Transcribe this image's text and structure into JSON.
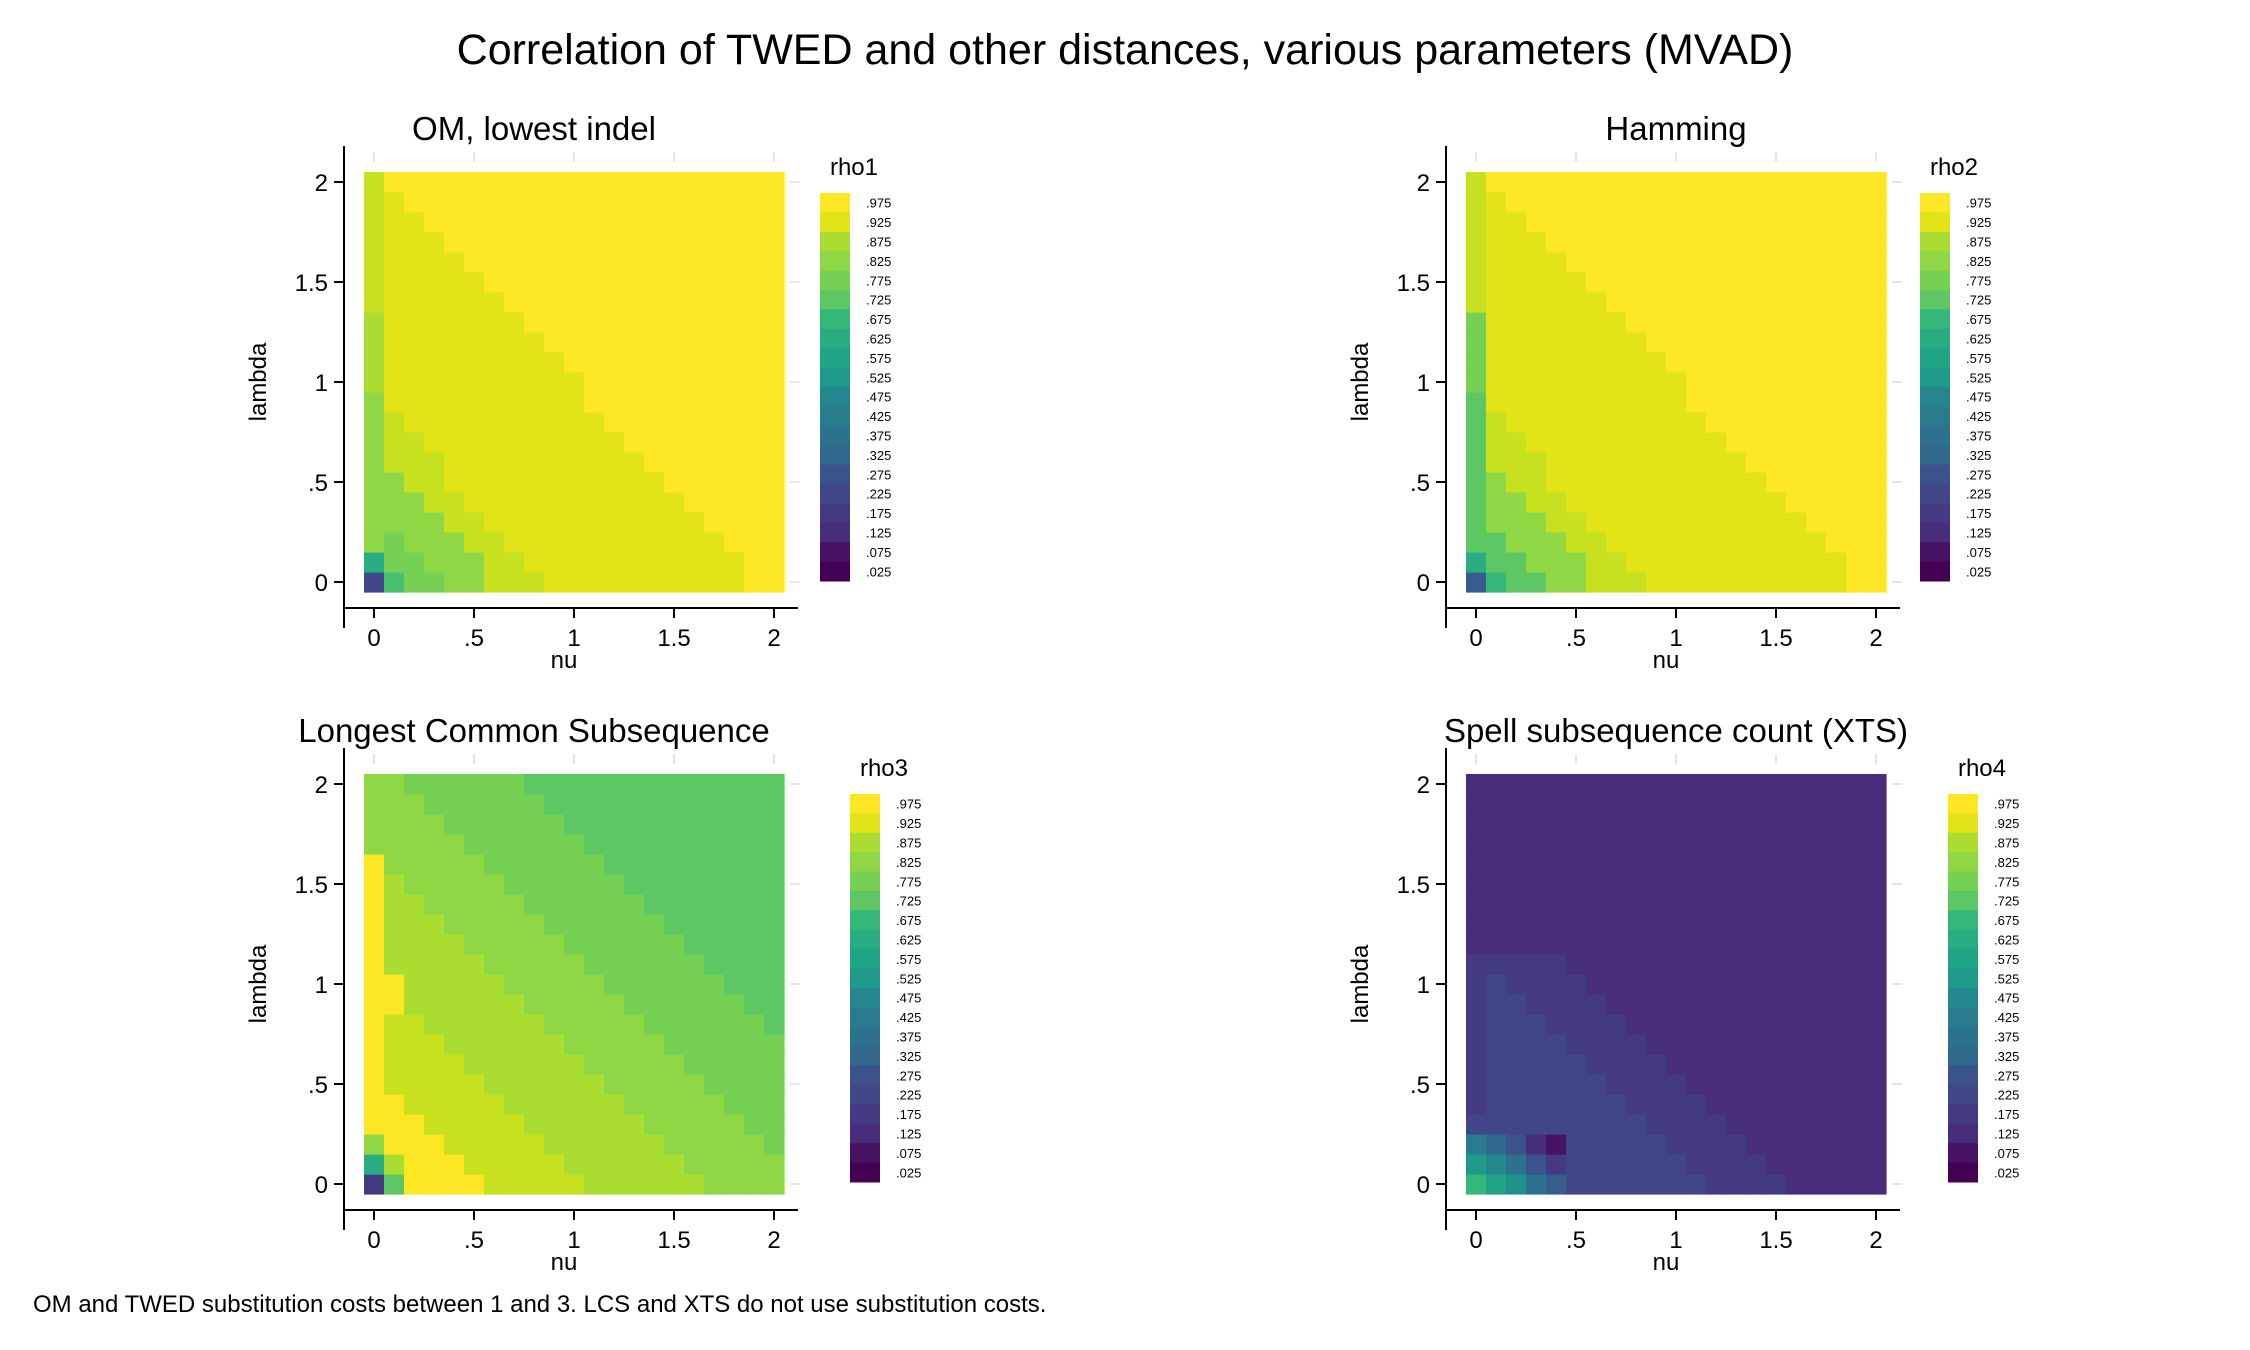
{
  "title": "Correlation of TWED and other distances, various parameters (MVAD)",
  "note": "OM and TWED substitution costs between 1 and 3. LCS and XTS do not use substitution costs.",
  "palette": [
    "#440154",
    "#471164",
    "#481f70",
    "#472d7b",
    "#443983",
    "#404688",
    "#3b528b",
    "#365d8d",
    "#31688e",
    "#2c728e",
    "#287c8e",
    "#24868e",
    "#21918c",
    "#1f9a8a",
    "#20a486",
    "#27ad81",
    "#35b779",
    "#47c16e",
    "#5dc863",
    "#75d054",
    "#8fd744",
    "#aadc32",
    "#c7e020",
    "#e3e418",
    "#fde725"
  ],
  "legend_ticks": [
    ".975",
    ".925",
    ".875",
    ".825",
    ".775",
    ".725",
    ".675",
    ".625",
    ".575",
    ".525",
    ".475",
    ".425",
    ".375",
    ".325",
    ".275",
    ".225",
    ".175",
    ".125",
    ".075",
    ".025"
  ],
  "chart_data": [
    {
      "type": "heatmap",
      "title": "OM, lowest indel",
      "xlabel": "nu",
      "ylabel": "lambda",
      "x_ticks": [
        "0",
        ".5",
        "1",
        "1.5",
        "2"
      ],
      "x_tick_values": [
        0,
        0.5,
        1,
        1.5,
        2
      ],
      "y_ticks": [
        "0",
        ".5",
        "1",
        "1.5",
        "2"
      ],
      "y_tick_values": [
        0,
        0.5,
        1,
        1.5,
        2
      ],
      "x": [
        0,
        0.1,
        0.2,
        0.3,
        0.4,
        0.5,
        0.6,
        0.7,
        0.8,
        0.9,
        1.0,
        1.1,
        1.2,
        1.3,
        1.4,
        1.5,
        1.6,
        1.7,
        1.8,
        1.9,
        2.0
      ],
      "y": [
        0,
        0.1,
        0.2,
        0.3,
        0.4,
        0.5,
        0.6,
        0.7,
        0.8,
        0.9,
        1.0,
        1.1,
        1.2,
        1.3,
        1.4,
        1.5,
        1.6,
        1.7,
        1.8,
        1.9,
        2.0
      ],
      "legend_title": "rho1",
      "model": {
        "kind": "diagonal",
        "base": 0.77,
        "slope": 0.06,
        "threshold": 0.6,
        "knee": 0.95,
        "high": 0.98,
        "edge_left": 0.8,
        "overrides": [
          [
            0,
            0,
            0.23
          ],
          [
            0,
            1,
            0.62
          ],
          [
            1,
            0,
            0.68
          ]
        ]
      }
    },
    {
      "type": "heatmap",
      "title": "Hamming",
      "xlabel": "nu",
      "ylabel": "lambda",
      "x_ticks": [
        "0",
        ".5",
        "1",
        "1.5",
        "2"
      ],
      "x_tick_values": [
        0,
        0.5,
        1,
        1.5,
        2
      ],
      "y_ticks": [
        "0",
        ".5",
        "1",
        "1.5",
        "2"
      ],
      "y_tick_values": [
        0,
        0.5,
        1,
        1.5,
        2
      ],
      "x": [
        0,
        0.1,
        0.2,
        0.3,
        0.4,
        0.5,
        0.6,
        0.7,
        0.8,
        0.9,
        1.0,
        1.1,
        1.2,
        1.3,
        1.4,
        1.5,
        1.6,
        1.7,
        1.8,
        1.9,
        2.0
      ],
      "y": [
        0,
        0.1,
        0.2,
        0.3,
        0.4,
        0.5,
        0.6,
        0.7,
        0.8,
        0.9,
        1.0,
        1.1,
        1.2,
        1.3,
        1.4,
        1.5,
        1.6,
        1.7,
        1.8,
        1.9,
        2.0
      ],
      "legend_title": "rho2",
      "model": {
        "kind": "diagonal",
        "base": 0.74,
        "slope": 0.07,
        "threshold": 0.5,
        "knee": 0.95,
        "high": 0.98,
        "edge_left": 0.72,
        "overrides": [
          [
            0,
            0,
            0.3
          ],
          [
            0,
            1,
            0.6
          ],
          [
            1,
            0,
            0.66
          ]
        ]
      }
    },
    {
      "type": "heatmap",
      "title": "Longest Common Subsequence",
      "xlabel": "nu",
      "ylabel": "lambda",
      "x_ticks": [
        "0",
        ".5",
        "1",
        "1.5",
        "2"
      ],
      "x_tick_values": [
        0,
        0.5,
        1,
        1.5,
        2
      ],
      "y_ticks": [
        "0",
        ".5",
        "1",
        "1.5",
        "2"
      ],
      "y_tick_values": [
        0,
        0.5,
        1,
        1.5,
        2
      ],
      "x": [
        0,
        0.1,
        0.2,
        0.3,
        0.4,
        0.5,
        0.6,
        0.7,
        0.8,
        0.9,
        1.0,
        1.1,
        1.2,
        1.3,
        1.4,
        1.5,
        1.6,
        1.7,
        1.8,
        1.9,
        2.0
      ],
      "y": [
        0,
        0.1,
        0.2,
        0.3,
        0.4,
        0.5,
        0.6,
        0.7,
        0.8,
        0.9,
        1.0,
        1.1,
        1.2,
        1.3,
        1.4,
        1.5,
        1.6,
        1.7,
        1.8,
        1.9,
        2.0
      ],
      "legend_title": "rho3",
      "model": {
        "kind": "lcs",
        "overrides": [
          [
            0,
            0,
            0.16
          ],
          [
            0,
            1,
            0.62
          ],
          [
            1,
            0,
            0.72
          ],
          [
            0,
            2,
            0.8
          ],
          [
            1,
            1,
            0.86
          ]
        ]
      }
    },
    {
      "type": "heatmap",
      "title": "Spell subsequence count (XTS)",
      "xlabel": "nu",
      "ylabel": "lambda",
      "x_ticks": [
        "0",
        ".5",
        "1",
        "1.5",
        "2"
      ],
      "x_tick_values": [
        0,
        0.5,
        1,
        1.5,
        2
      ],
      "y_ticks": [
        "0",
        ".5",
        "1",
        "1.5",
        "2"
      ],
      "y_tick_values": [
        0,
        0.5,
        1,
        1.5,
        2
      ],
      "x": [
        0,
        0.1,
        0.2,
        0.3,
        0.4,
        0.5,
        0.6,
        0.7,
        0.8,
        0.9,
        1.0,
        1.1,
        1.2,
        1.3,
        1.4,
        1.5,
        1.6,
        1.7,
        1.8,
        1.9,
        2.0
      ],
      "y": [
        0,
        0.1,
        0.2,
        0.3,
        0.4,
        0.5,
        0.6,
        0.7,
        0.8,
        0.9,
        1.0,
        1.1,
        1.2,
        1.3,
        1.4,
        1.5,
        1.6,
        1.7,
        1.8,
        1.9,
        2.0
      ],
      "legend_title": "rho4",
      "model": {
        "kind": "xts"
      }
    }
  ]
}
